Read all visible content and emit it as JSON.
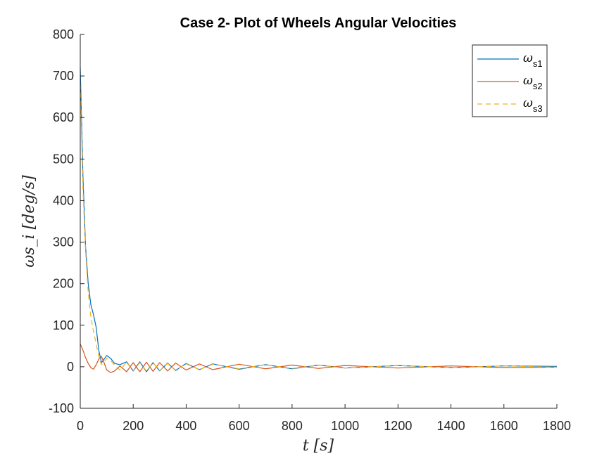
{
  "chart_data": {
    "type": "line",
    "title": "Case 2- Plot of Wheels Angular Velocities",
    "xlabel": "t [s]",
    "ylabel": "ωs_i [deg/s]",
    "xlim": [
      0,
      1800
    ],
    "ylim": [
      -100,
      800
    ],
    "xticks": [
      0,
      200,
      400,
      600,
      800,
      1000,
      1200,
      1400,
      1600,
      1800
    ],
    "yticks": [
      -100,
      0,
      100,
      200,
      300,
      400,
      500,
      600,
      700,
      800
    ],
    "grid": false,
    "legend_position": "top-right",
    "series": [
      {
        "name": "ωs1",
        "legend_main": "ω",
        "legend_sub": "s1",
        "color": "#0072BD",
        "dash": "solid",
        "x": [
          0,
          5,
          10,
          20,
          30,
          40,
          50,
          60,
          70,
          80,
          90,
          100,
          115,
          130,
          150,
          175,
          200,
          225,
          250,
          275,
          300,
          330,
          360,
          400,
          450,
          500,
          600,
          700,
          800,
          900,
          1000,
          1200,
          1400,
          1600,
          1800
        ],
        "y": [
          720,
          590,
          460,
          290,
          200,
          150,
          125,
          95,
          40,
          10,
          18,
          27,
          20,
          8,
          5,
          12,
          -10,
          12,
          -12,
          10,
          -10,
          9,
          -9,
          8,
          -7,
          7,
          -6,
          5,
          -5,
          4,
          -3,
          3,
          -2,
          2,
          1
        ]
      },
      {
        "name": "ωs2",
        "legend_main": "ω",
        "legend_sub": "s2",
        "color": "#D95319",
        "dash": "solid",
        "x": [
          0,
          10,
          20,
          30,
          40,
          50,
          60,
          70,
          80,
          90,
          100,
          115,
          130,
          150,
          175,
          200,
          225,
          250,
          275,
          300,
          330,
          360,
          400,
          450,
          500,
          600,
          700,
          800,
          900,
          1000,
          1200,
          1400,
          1600,
          1800
        ],
        "y": [
          55,
          40,
          22,
          8,
          -2,
          -6,
          5,
          18,
          25,
          10,
          -8,
          -14,
          -10,
          2,
          -12,
          10,
          -12,
          11,
          -11,
          10,
          -10,
          9,
          -8,
          7,
          -7,
          6,
          -5,
          4,
          -4,
          3,
          -3,
          2,
          -2,
          -1
        ]
      },
      {
        "name": "ωs3",
        "legend_main": "ω",
        "legend_sub": "s3",
        "color": "#EDB120",
        "dash": "dashed",
        "x": [
          0,
          5,
          10,
          20,
          30,
          40,
          50,
          60,
          70,
          80,
          90,
          100,
          115,
          130,
          150,
          175,
          200,
          225,
          250,
          275,
          300,
          330,
          360,
          400,
          450,
          500,
          600,
          700,
          800,
          900,
          1000,
          1200,
          1400,
          1600,
          1800
        ],
        "y": [
          680,
          560,
          430,
          280,
          180,
          120,
          85,
          55,
          25,
          5,
          12,
          20,
          15,
          3,
          -8,
          11,
          -11,
          10,
          -10,
          10,
          -9,
          8,
          -8,
          7,
          -7,
          6,
          -5,
          5,
          -4,
          4,
          -3,
          3,
          -2,
          2,
          -1
        ]
      }
    ]
  }
}
